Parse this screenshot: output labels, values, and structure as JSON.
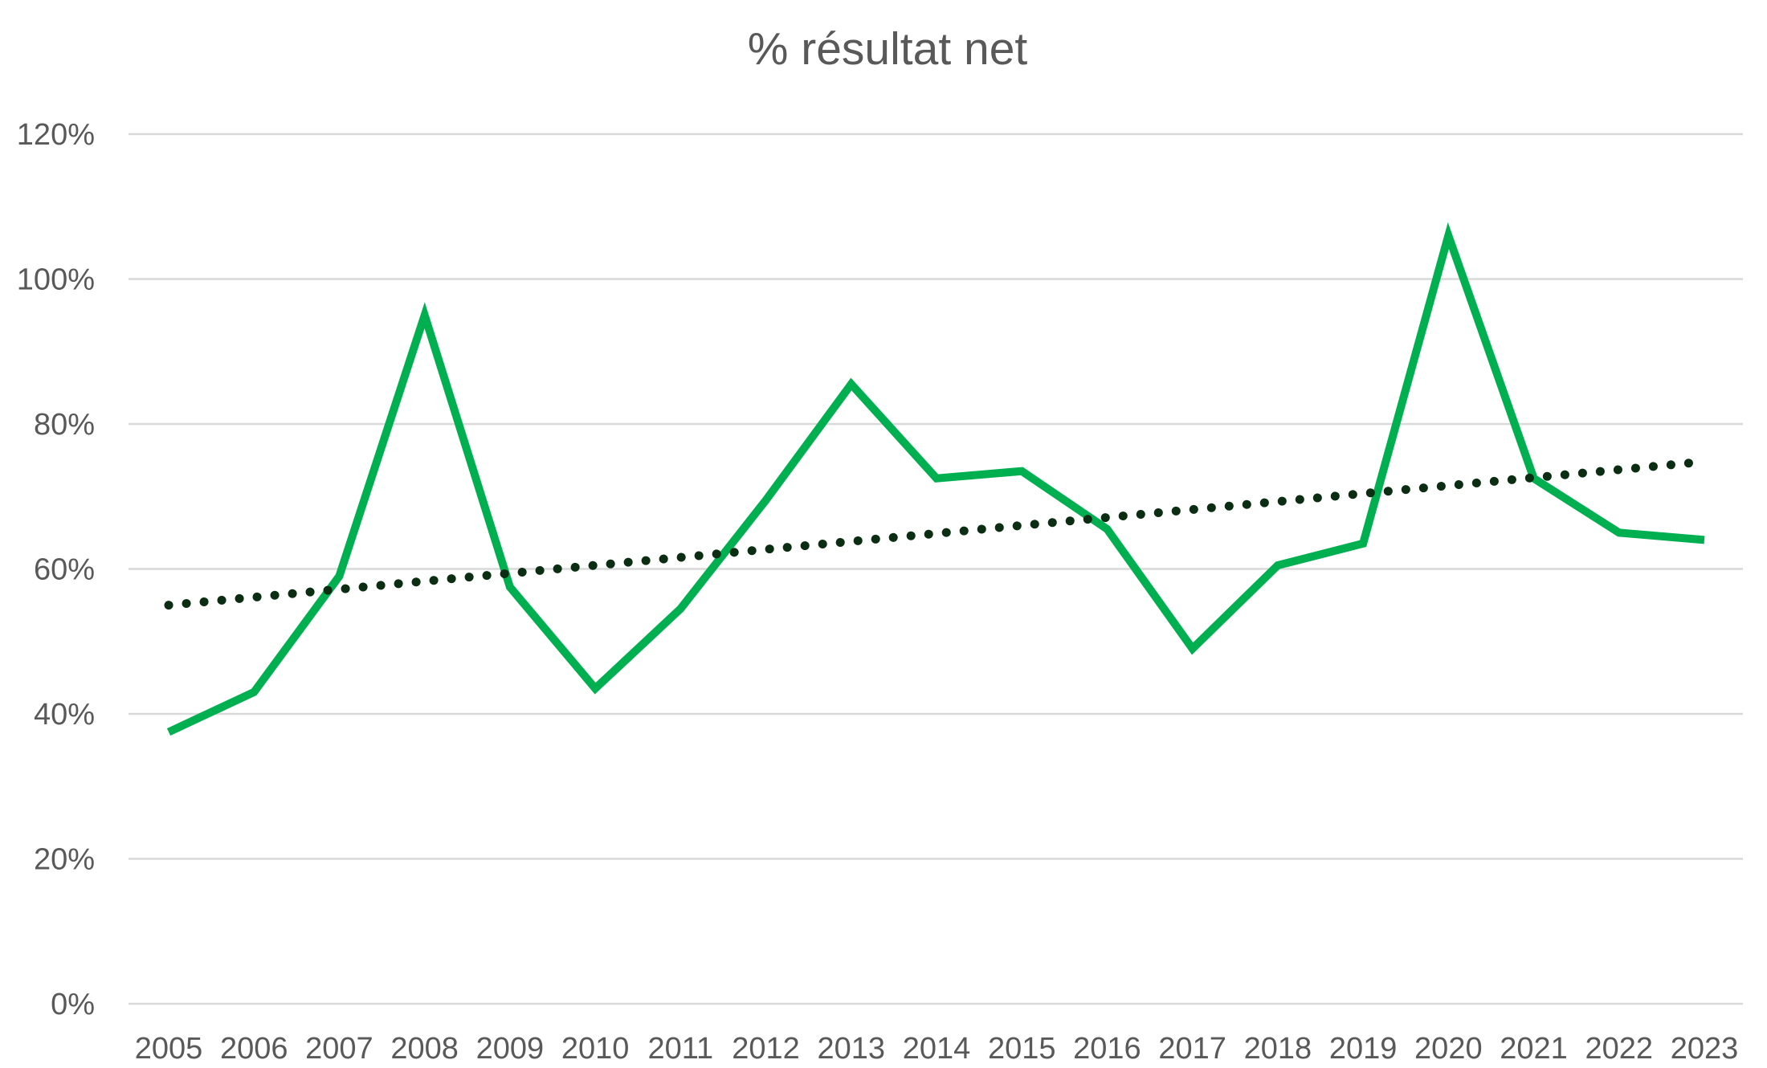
{
  "chart_data": {
    "type": "line",
    "title": "% résultat net",
    "xlabel": "",
    "ylabel": "",
    "categories": [
      "2005",
      "2006",
      "2007",
      "2008",
      "2009",
      "2010",
      "2011",
      "2012",
      "2013",
      "2014",
      "2015",
      "2016",
      "2017",
      "2018",
      "2019",
      "2020",
      "2021",
      "2022",
      "2023"
    ],
    "y_ticks": [
      "0%",
      "20%",
      "40%",
      "60%",
      "80%",
      "100%",
      "120%"
    ],
    "ylim": [
      0,
      120
    ],
    "grid": true,
    "legend": "none",
    "series": [
      {
        "kind": "data",
        "values": [
          37.5,
          43,
          59,
          95,
          57.5,
          43.5,
          54.5,
          69.5,
          85.5,
          72.5,
          73.5,
          65.5,
          49,
          60.5,
          63.5,
          106,
          72.5,
          65,
          64
        ],
        "color": "#00b050",
        "line_style": "solid"
      },
      {
        "kind": "linear-trendline",
        "values": [
          55,
          56.1,
          57.2,
          58.3,
          59.4,
          60.5,
          61.6,
          62.7,
          63.8,
          64.9,
          66.0,
          67.1,
          68.2,
          69.3,
          70.4,
          71.5,
          72.6,
          73.7,
          74.8
        ],
        "color": "#0b2e13",
        "line_style": "dotted"
      }
    ],
    "colors": {
      "grid": "#d9d9d9",
      "text": "#595959"
    }
  }
}
